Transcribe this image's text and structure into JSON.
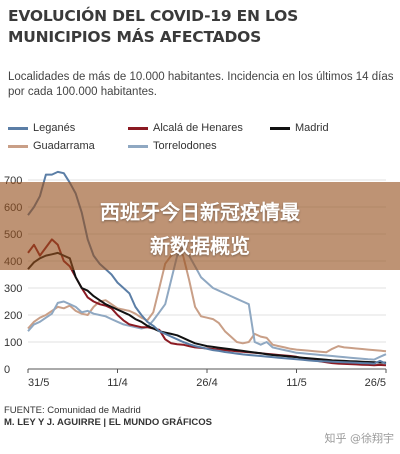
{
  "chart_data": {
    "type": "line",
    "title": "EVOLUCIÓN DEL COVID-19 EN LOS MUNICIPIOS MÁS AFECTADOS",
    "subtitle": "Localidades de más de 10.000 habitantes. Incidencia en los últimos 14 días por cada 100.000 habitantes.",
    "xlabel": "",
    "ylabel": "",
    "ylim": [
      0,
      700
    ],
    "yticks": [
      0,
      100,
      200,
      300,
      400,
      500,
      600,
      700
    ],
    "x_tick_labels": [
      "31/5",
      "11/4",
      "26/4",
      "11/5",
      "26/5"
    ],
    "x": [
      0,
      1,
      2,
      3,
      4,
      5,
      6,
      7,
      8,
      9,
      10,
      11,
      12,
      13,
      14,
      15,
      16,
      17,
      18,
      19,
      20,
      21,
      22,
      23,
      24,
      25,
      26,
      27,
      28,
      29,
      30,
      31,
      32,
      33,
      34,
      35,
      36,
      37,
      38,
      39,
      40,
      41,
      42,
      43,
      44,
      45,
      46,
      47,
      48,
      49,
      50,
      51,
      52,
      53,
      54,
      55,
      56,
      57,
      58,
      59,
      60
    ],
    "grid": true,
    "legend_placement": "top",
    "series": [
      {
        "name": "Leganés",
        "color": "#5b7ea6",
        "values": [
          570,
          600,
          640,
          720,
          720,
          730,
          725,
          690,
          650,
          580,
          480,
          420,
          390,
          370,
          350,
          320,
          300,
          280,
          230,
          200,
          175,
          160,
          140,
          130,
          120,
          110,
          100,
          92,
          85,
          80,
          75,
          70,
          67,
          63,
          60,
          57,
          54,
          52,
          50,
          48,
          46,
          44,
          42,
          40,
          38,
          36,
          34,
          32,
          30,
          29,
          28,
          27,
          26,
          25,
          24,
          23,
          22,
          21,
          20,
          30,
          20
        ]
      },
      {
        "name": "Alcalá de Henares",
        "color": "#8b1a22",
        "values": [
          430,
          460,
          420,
          450,
          480,
          460,
          400,
          380,
          340,
          300,
          265,
          250,
          240,
          235,
          225,
          200,
          180,
          165,
          160,
          155,
          155,
          150,
          145,
          110,
          95,
          92,
          90,
          85,
          80,
          78,
          76,
          74,
          72,
          70,
          68,
          66,
          64,
          62,
          60,
          58,
          56,
          54,
          52,
          50,
          48,
          45,
          40,
          36,
          32,
          28,
          25,
          22,
          20,
          19,
          18,
          17,
          16,
          15,
          14,
          15,
          14
        ]
      },
      {
        "name": "Madrid",
        "color": "#111111",
        "values": [
          370,
          395,
          410,
          420,
          425,
          430,
          420,
          410,
          340,
          300,
          290,
          270,
          255,
          240,
          230,
          220,
          210,
          200,
          185,
          175,
          160,
          150,
          140,
          135,
          130,
          125,
          115,
          105,
          95,
          90,
          85,
          82,
          79,
          76,
          73,
          70,
          67,
          64,
          61,
          58,
          55,
          52,
          50,
          48,
          46,
          44,
          42,
          40,
          38,
          36,
          34,
          32,
          31,
          30,
          29,
          28,
          27,
          26,
          25,
          24,
          23
        ]
      },
      {
        "name": "Guadarrama",
        "color": "#c99f87",
        "values": [
          150,
          175,
          190,
          200,
          215,
          230,
          225,
          235,
          215,
          205,
          200,
          230,
          250,
          255,
          240,
          225,
          220,
          215,
          205,
          190,
          180,
          210,
          300,
          390,
          420,
          450,
          420,
          330,
          230,
          195,
          190,
          185,
          170,
          140,
          120,
          100,
          95,
          100,
          130,
          120,
          115,
          90,
          85,
          80,
          75,
          72,
          70,
          68,
          66,
          64,
          62,
          75,
          85,
          80,
          78,
          76,
          74,
          72,
          70,
          68,
          66
        ]
      },
      {
        "name": "Torrelodones",
        "color": "#8fa8c2",
        "values": [
          140,
          165,
          175,
          190,
          205,
          245,
          250,
          240,
          230,
          210,
          215,
          205,
          200,
          195,
          185,
          175,
          165,
          160,
          155,
          150,
          155,
          180,
          210,
          240,
          330,
          420,
          450,
          420,
          380,
          340,
          320,
          300,
          290,
          280,
          270,
          260,
          250,
          240,
          100,
          90,
          100,
          80,
          75,
          70,
          65,
          60,
          58,
          56,
          54,
          52,
          50,
          48,
          46,
          44,
          42,
          40,
          38,
          36,
          35,
          45,
          55
        ]
      }
    ],
    "source": "FUENTE: Comunidad de Madrid",
    "credit": "M. LEY Y J. AGUIRRE | EL MUNDO GRÁFICOS"
  },
  "overlay": {
    "banner_line1": "西班牙今日新冠疫情最",
    "banner_line2": "新数据概览",
    "banner_color": "#96501e",
    "watermark": "知乎 @徐翔宇"
  }
}
